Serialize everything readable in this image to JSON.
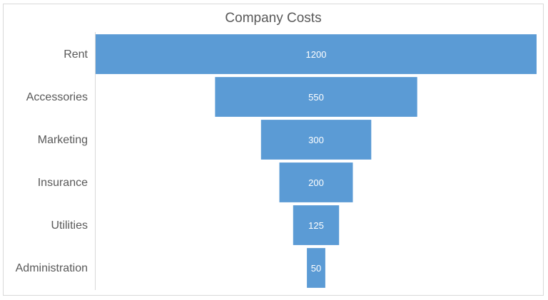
{
  "chart_data": {
    "type": "bar",
    "subtype": "funnel",
    "title": "Company Costs",
    "categories": [
      "Rent",
      "Accessories",
      "Marketing",
      "Insurance",
      "Utilities",
      "Administration"
    ],
    "values": [
      1200,
      550,
      300,
      200,
      125,
      50
    ],
    "value_labels": [
      "1200",
      "550",
      "300",
      "200",
      "125",
      "50"
    ],
    "bar_color": "#5b9bd5",
    "value_label_color": "#ffffff",
    "category_label_color": "#595959",
    "axis_color": "#d9d9d9",
    "legend": "none",
    "grid": false
  }
}
